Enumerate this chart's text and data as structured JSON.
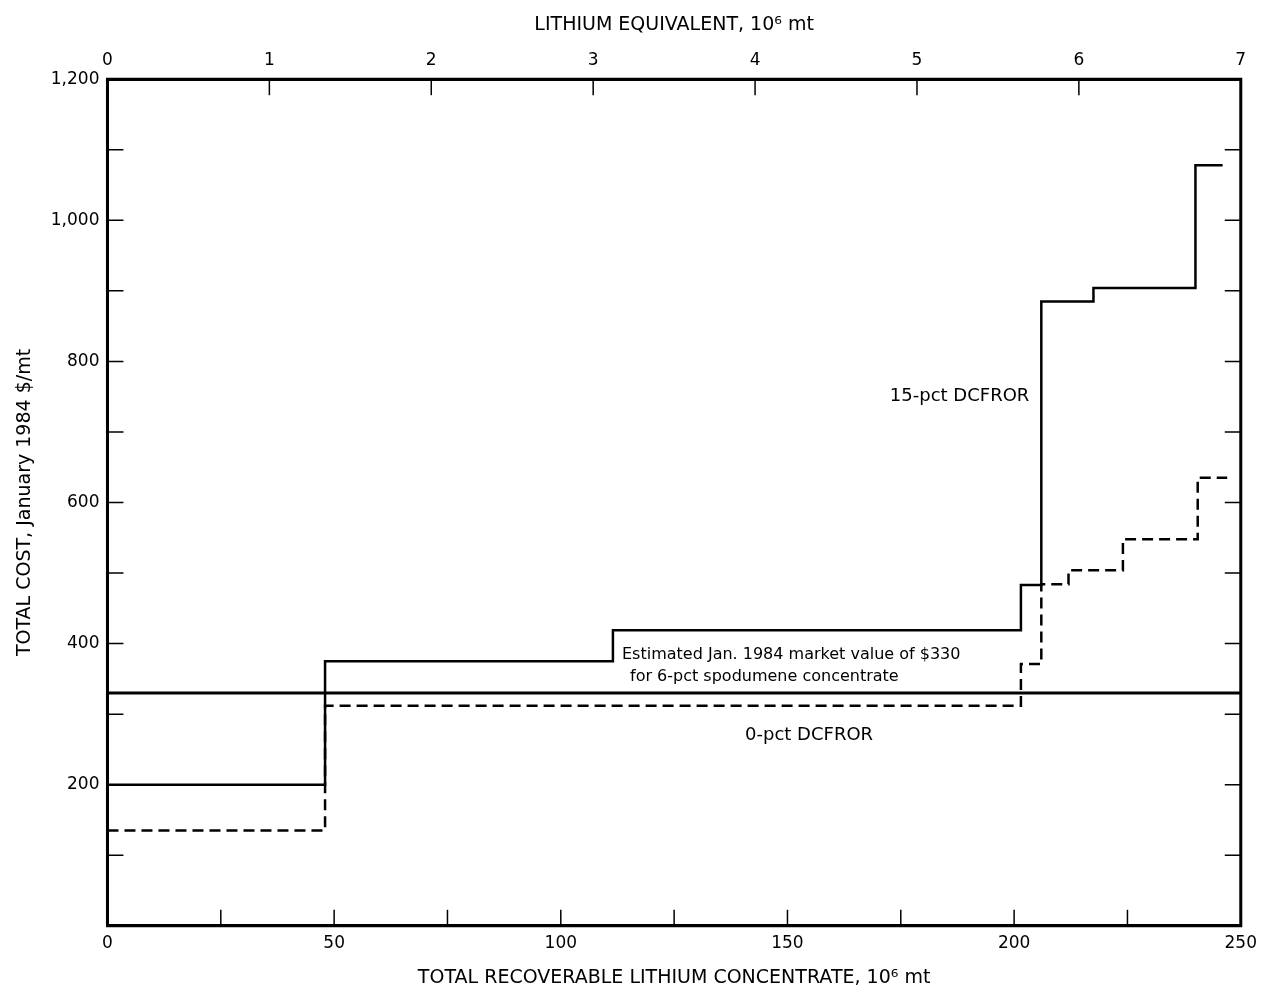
{
  "chart_data": {
    "type": "step",
    "xlabel": "TOTAL RECOVERABLE LITHIUM CONCENTRATE, 10⁶ mt",
    "ylabel": "TOTAL COST, January 1984 $/mt",
    "x2label": "LITHIUM EQUIVALENT, 10⁶ mt",
    "xlim": [
      0,
      250
    ],
    "xticks": [
      0,
      {
        "value": 25,
        "label": null
      },
      50,
      {
        "value": 75,
        "label": null
      },
      100,
      {
        "value": 125,
        "label": null
      },
      150,
      {
        "value": 175,
        "label": null
      },
      200,
      {
        "value": 225,
        "label": null
      },
      250
    ],
    "x2lim": [
      0,
      7
    ],
    "x2ticks": [
      0,
      1,
      2,
      3,
      4,
      5,
      6,
      7
    ],
    "ylim": [
      0,
      1200
    ],
    "yticks": [
      {
        "value": 0,
        "label": null
      },
      {
        "value": 100,
        "label": null
      },
      200,
      {
        "value": 300,
        "label": null
      },
      400,
      {
        "value": 500,
        "label": null
      },
      600,
      {
        "value": 700,
        "label": null
      },
      800,
      {
        "value": 900,
        "label": null
      },
      {
        "value": 1000,
        "label": "1,000"
      },
      {
        "value": 1100,
        "label": null
      },
      {
        "value": 1200,
        "label": "1,200"
      }
    ],
    "legend": false,
    "marker": "none",
    "series": [
      {
        "name": "15-pct DCFROR",
        "color": "#000000",
        "line_style": "solid",
        "x": [
          0,
          48,
          111.5,
          201.5,
          206,
          217.5,
          240,
          246
        ],
        "values": [
          200,
          375,
          419,
          483,
          885,
          904,
          1078,
          1078
        ]
      },
      {
        "name": "0-pct DCFROR",
        "color": "#000000",
        "line_style": "dashed",
        "x": [
          0,
          48,
          201.5,
          206,
          212,
          224,
          240.5,
          247
        ],
        "values": [
          135,
          312,
          371,
          484,
          504,
          548,
          635,
          635
        ]
      }
    ],
    "ref_lines": [
      {
        "axis": "y",
        "value": 330,
        "label": "Estimated Jan. 1984 market value of $330\nfor 6-pct spodumene concentrate",
        "color": "#000000"
      }
    ]
  }
}
